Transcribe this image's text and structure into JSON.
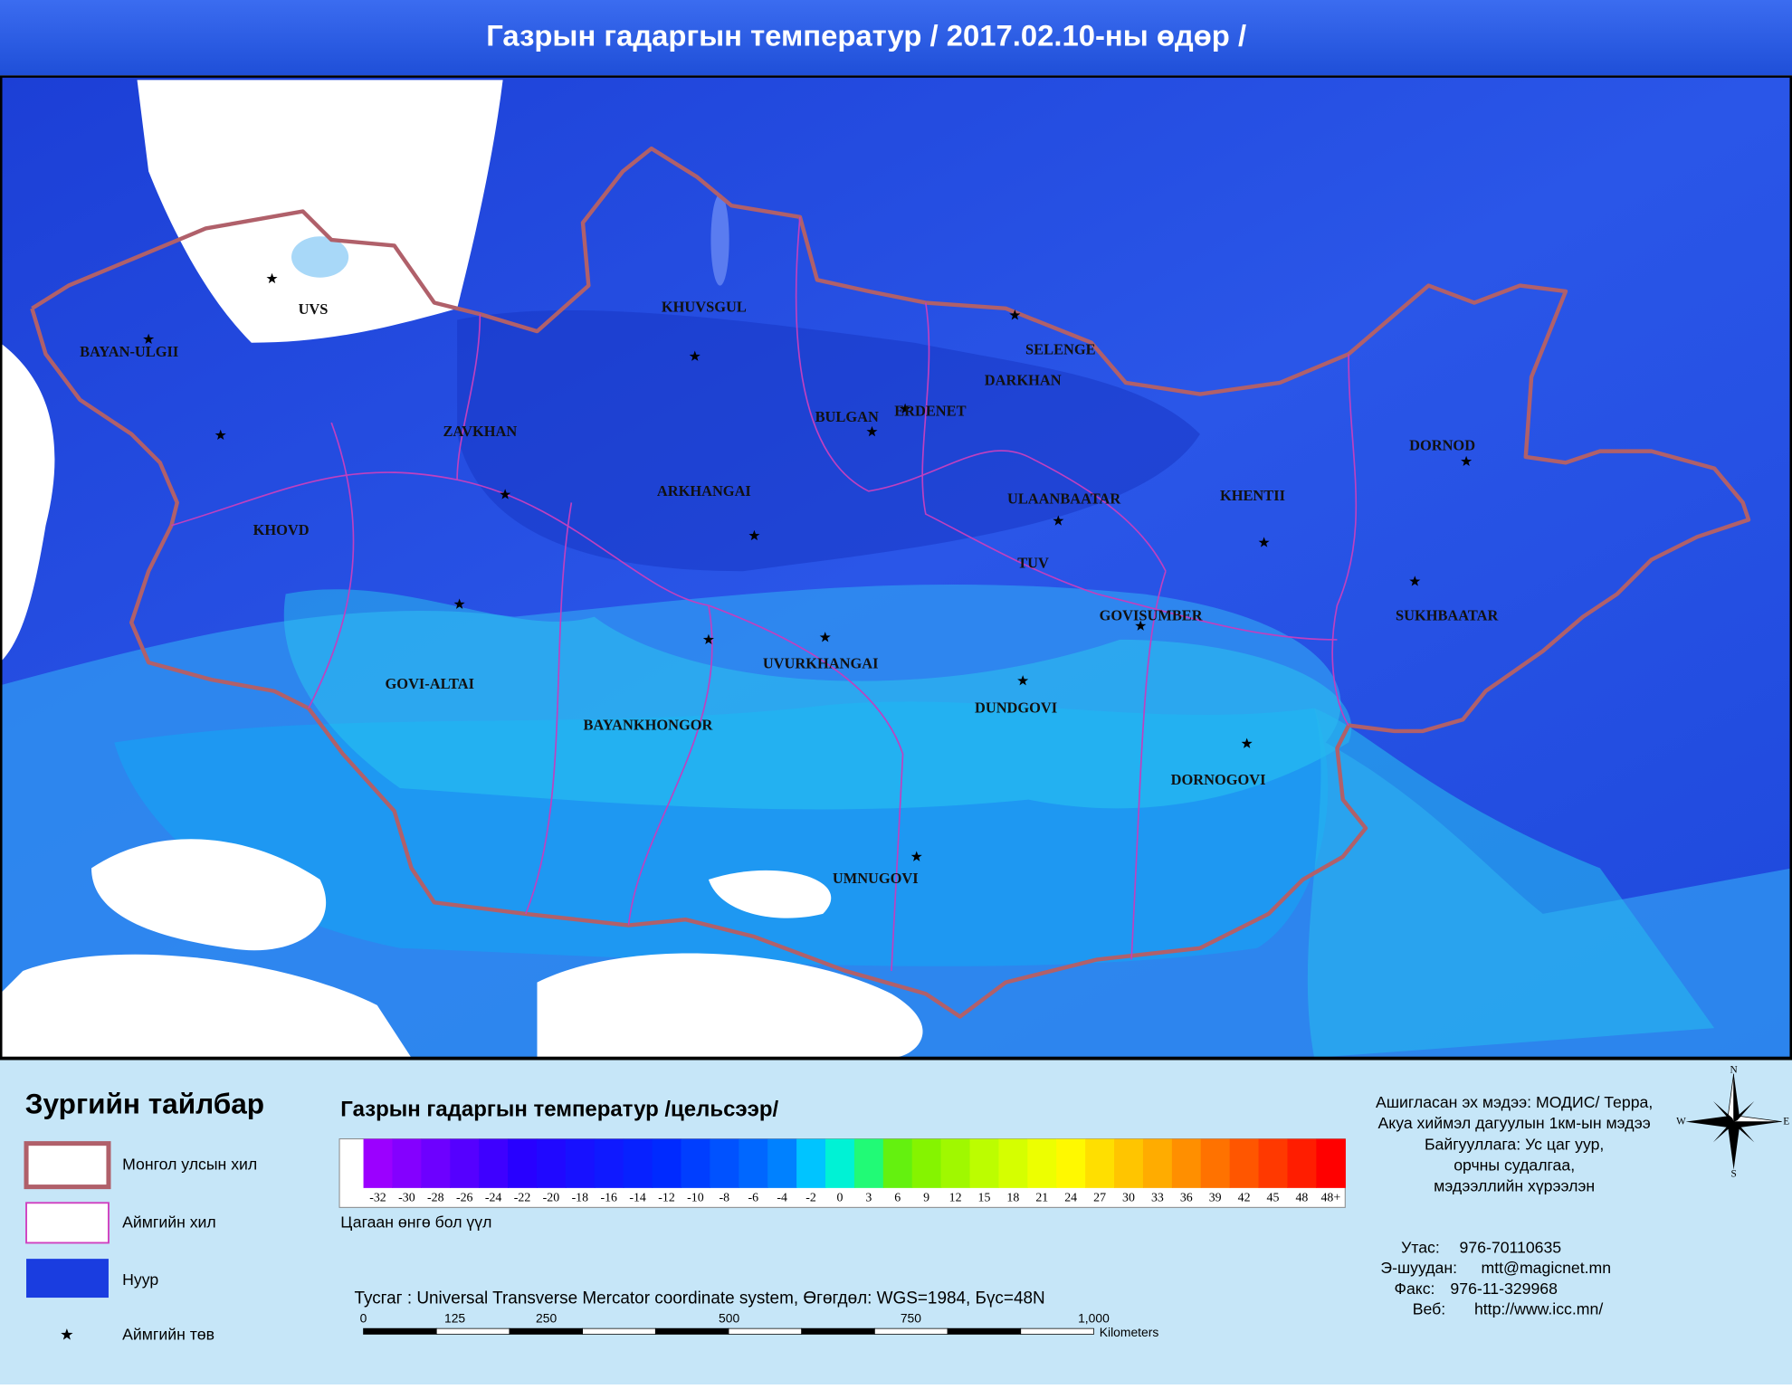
{
  "header": {
    "title": "Газрын гадаргын температур / 2017.02.10-ны өдөр /"
  },
  "map": {
    "labels": [
      "BAYAN-ULGII",
      "UVS",
      "KHUVSGUL",
      "SELENGE",
      "DARKHAN",
      "ERDENET",
      "BULGAN",
      "ZAVKHAN",
      "ARKHANGAI",
      "KHOVD",
      "ULAANBAATAR",
      "KHENTII",
      "DORNOD",
      "TUV",
      "GOVISUMBER",
      "SUKHBAATAR",
      "GOVI-ALTAI",
      "UVURKHANGAI",
      "BAYANKHONGOR",
      "DUNDGOVI",
      "DORNOGOVI",
      "UMNUGOVI"
    ]
  },
  "legend": {
    "title": "Зургийн тайлбар",
    "items": [
      "Монгол улсын хил",
      "Аймгийн хил",
      "Нуур",
      "Аймгийн төв"
    ]
  },
  "scale": {
    "title": "Газрын гадаргын температур /цельсээр/",
    "ticks": [
      "-32",
      "-30",
      "-28",
      "-26",
      "-24",
      "-22",
      "-20",
      "-18",
      "-16",
      "-14",
      "-12",
      "-10",
      "-8",
      "-6",
      "-4",
      "-2",
      "0",
      "3",
      "6",
      "9",
      "12",
      "15",
      "18",
      "21",
      "24",
      "27",
      "30",
      "33",
      "36",
      "39",
      "42",
      "45",
      "48",
      "48+"
    ],
    "note": "Цагаан өнгө бол үүл"
  },
  "projection": "Тусгаг : Universal Transverse Mercator coordinate system, Өгөгдөл: WGS=1984, Бүс=48N",
  "distance_bar": {
    "ticks": [
      "0",
      "125",
      "250",
      "500",
      "750",
      "1,000"
    ],
    "unit": "Kilometers"
  },
  "credits": [
    "Ашигласан эх мэдээ: МОДИС/ Терра,",
    "Акуа хиймэл дагуулын 1км-ын мэдээ",
    "Байгууллага: Ус цаг уур,",
    "орчны судалгаа,",
    "мэдээллийн хүрээлэн"
  ],
  "contacts": [
    {
      "label": "Утас:",
      "value": "976-70110635"
    },
    {
      "label": "Э-шуудан:",
      "value": "mtt@magicnet.mn"
    },
    {
      "label": "Факс:",
      "value": "976-11-329968"
    },
    {
      "label": "Веб:",
      "value": "http://www.icc.mn/"
    }
  ],
  "compass": {
    "n": "N",
    "e": "E",
    "s": "S",
    "w": "W"
  }
}
